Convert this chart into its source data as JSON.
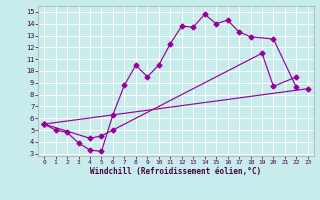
{
  "xlabel": "Windchill (Refroidissement éolien,°C)",
  "xlim": [
    -0.5,
    23.5
  ],
  "ylim": [
    2.8,
    15.5
  ],
  "xticks": [
    0,
    1,
    2,
    3,
    4,
    5,
    6,
    7,
    8,
    9,
    10,
    11,
    12,
    13,
    14,
    15,
    16,
    17,
    18,
    19,
    20,
    21,
    22,
    23
  ],
  "yticks": [
    3,
    4,
    5,
    6,
    7,
    8,
    9,
    10,
    11,
    12,
    13,
    14,
    15
  ],
  "background_color": "#c8ecec",
  "grid_color": "#ffffff",
  "line_color": "#990099",
  "line1_x": [
    0,
    1,
    2,
    3,
    4,
    5,
    6,
    7,
    8,
    9,
    10,
    11,
    12,
    13,
    14,
    15,
    16,
    17,
    18,
    20,
    22
  ],
  "line1_y": [
    5.5,
    5.0,
    4.8,
    3.9,
    3.3,
    3.2,
    6.3,
    8.8,
    10.5,
    9.5,
    10.5,
    12.3,
    13.8,
    13.7,
    14.8,
    14.0,
    14.3,
    13.3,
    12.9,
    12.7,
    8.6
  ],
  "line2_x": [
    0,
    4,
    5,
    6,
    19,
    20,
    22
  ],
  "line2_y": [
    5.5,
    4.3,
    4.5,
    5.0,
    11.5,
    8.7,
    9.5
  ],
  "line3_x": [
    0,
    23
  ],
  "line3_y": [
    5.5,
    8.5
  ]
}
